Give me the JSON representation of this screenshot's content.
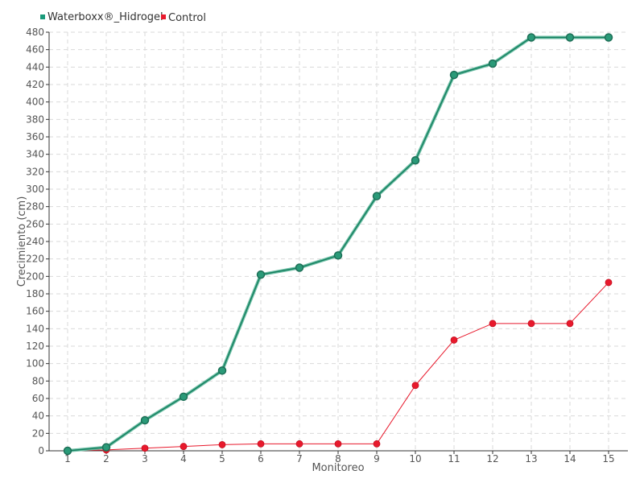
{
  "chart_data": {
    "type": "line",
    "xlabel": "Monitoreo",
    "ylabel": "Crecimiento (cm)",
    "categories": [
      "1",
      "2",
      "3",
      "4",
      "5",
      "6",
      "7",
      "8",
      "9",
      "10",
      "11",
      "12",
      "13",
      "14",
      "15"
    ],
    "ylim": [
      0,
      480
    ],
    "ytick_step": 20,
    "grid": true,
    "legend_position": "top-left",
    "series": [
      {
        "name": "Waterboxx®_Hidrogel",
        "color": "#1a9a7a",
        "values": [
          0,
          4,
          35,
          62,
          92,
          202,
          210,
          224,
          292,
          333,
          431,
          444,
          474,
          474,
          474
        ]
      },
      {
        "name": "Control",
        "color": "#e8192c",
        "values": [
          0,
          1,
          3,
          5,
          7,
          8,
          8,
          8,
          8,
          75,
          127,
          146,
          146,
          146,
          193
        ]
      }
    ]
  }
}
